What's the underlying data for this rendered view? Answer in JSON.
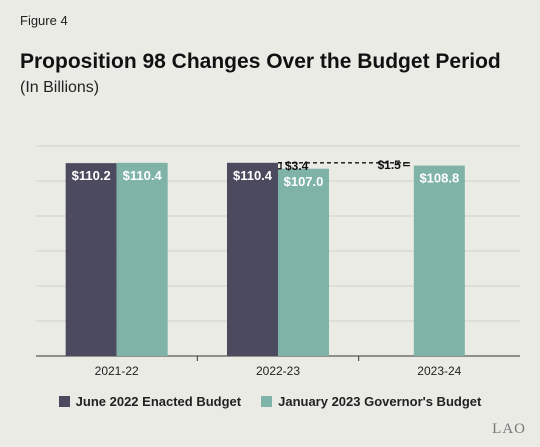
{
  "figure_label": "Figure 4",
  "chart_data": {
    "type": "bar",
    "title": "Proposition 98 Changes Over the Budget Period",
    "subtitle": "(In Billions)",
    "categories": [
      "2021-22",
      "2022-23",
      "2023-24"
    ],
    "series": [
      {
        "name": "June 2022 Enacted Budget",
        "color": "#4c4a5e",
        "values": [
          110.2,
          110.4,
          null
        ],
        "labels": [
          "$110.2",
          "$110.4",
          ""
        ]
      },
      {
        "name": "January 2023 Governor's Budget",
        "color": "#7fb3a8",
        "values": [
          110.4,
          107.0,
          108.8
        ],
        "labels": [
          "$110.4",
          "$107.0",
          "$108.8"
        ]
      }
    ],
    "annotations": [
      {
        "text": "$3.4",
        "from": 110.4,
        "to": 107.0,
        "category": "2022-23"
      },
      {
        "text": "$1.5",
        "from": 110.4,
        "to": 108.8,
        "category": "2023-24"
      }
    ],
    "grid": true,
    "legend_position": "bottom"
  },
  "logo_text": "LAO"
}
